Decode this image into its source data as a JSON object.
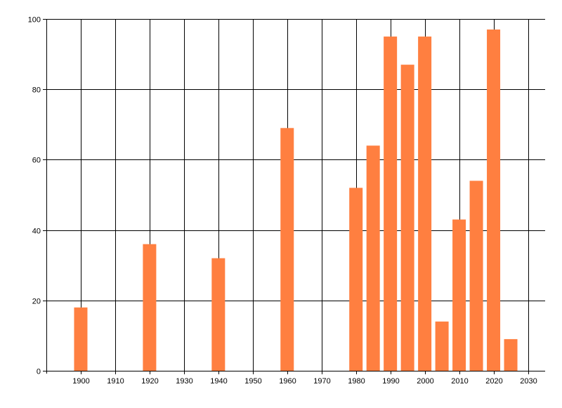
{
  "chart_data": {
    "type": "bar",
    "title": "",
    "xlabel": "",
    "ylabel": "",
    "x": [
      1900,
      1920,
      1940,
      1960,
      1980,
      1985,
      1990,
      1995,
      2000,
      2005,
      2010,
      2015,
      2020,
      2025
    ],
    "values": [
      18,
      36,
      32,
      69,
      52,
      64,
      95,
      87,
      95,
      14,
      43,
      54,
      97,
      9
    ],
    "xlim": [
      1890,
      2035
    ],
    "ylim": [
      0,
      100
    ],
    "xticks": [
      1900,
      1910,
      1920,
      1930,
      1940,
      1950,
      1960,
      1970,
      1980,
      1990,
      2000,
      2010,
      2020,
      2030
    ],
    "yticks": [
      0,
      20,
      40,
      60,
      80,
      100
    ],
    "grid": true,
    "legend": "none",
    "bar_color": "#FF7F40",
    "grid_color": "#000000",
    "axis_color": "#000000"
  }
}
